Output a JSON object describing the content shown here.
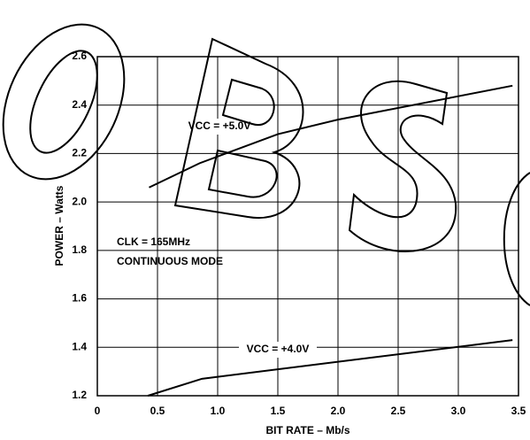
{
  "chart_data": {
    "type": "line",
    "xlabel": "BIT RATE – Mb/s",
    "ylabel": "POWER – Watts",
    "xlim": [
      0,
      3.5
    ],
    "xticks": [
      0,
      0.5,
      {
        "value": 1,
        "label": "1.0"
      },
      1.5,
      {
        "value": 2,
        "label": "2.0"
      },
      2.5,
      {
        "value": 3,
        "label": "3.0"
      },
      3.5
    ],
    "ylim": [
      1.2,
      2.6
    ],
    "yticks": [
      1.2,
      1.4,
      1.6,
      1.8,
      {
        "value": 2,
        "label": "2.0"
      },
      2.2,
      2.4,
      2.6
    ],
    "grid": true,
    "annotations": [
      "CLK = 165MHz",
      "CONTINUOUS MODE"
    ],
    "series": [
      {
        "name": "VCC = +5.0V",
        "color": "#000000",
        "x": [
          0.43,
          0.85,
          1.5,
          2.0,
          3.45
        ],
        "values": [
          2.06,
          2.16,
          2.28,
          2.34,
          2.48
        ]
      },
      {
        "name": "VCC = +4.0V",
        "color": "#000000",
        "x": [
          0.42,
          0.87,
          3.45
        ],
        "values": [
          1.2,
          1.27,
          1.43
        ]
      }
    ]
  }
}
